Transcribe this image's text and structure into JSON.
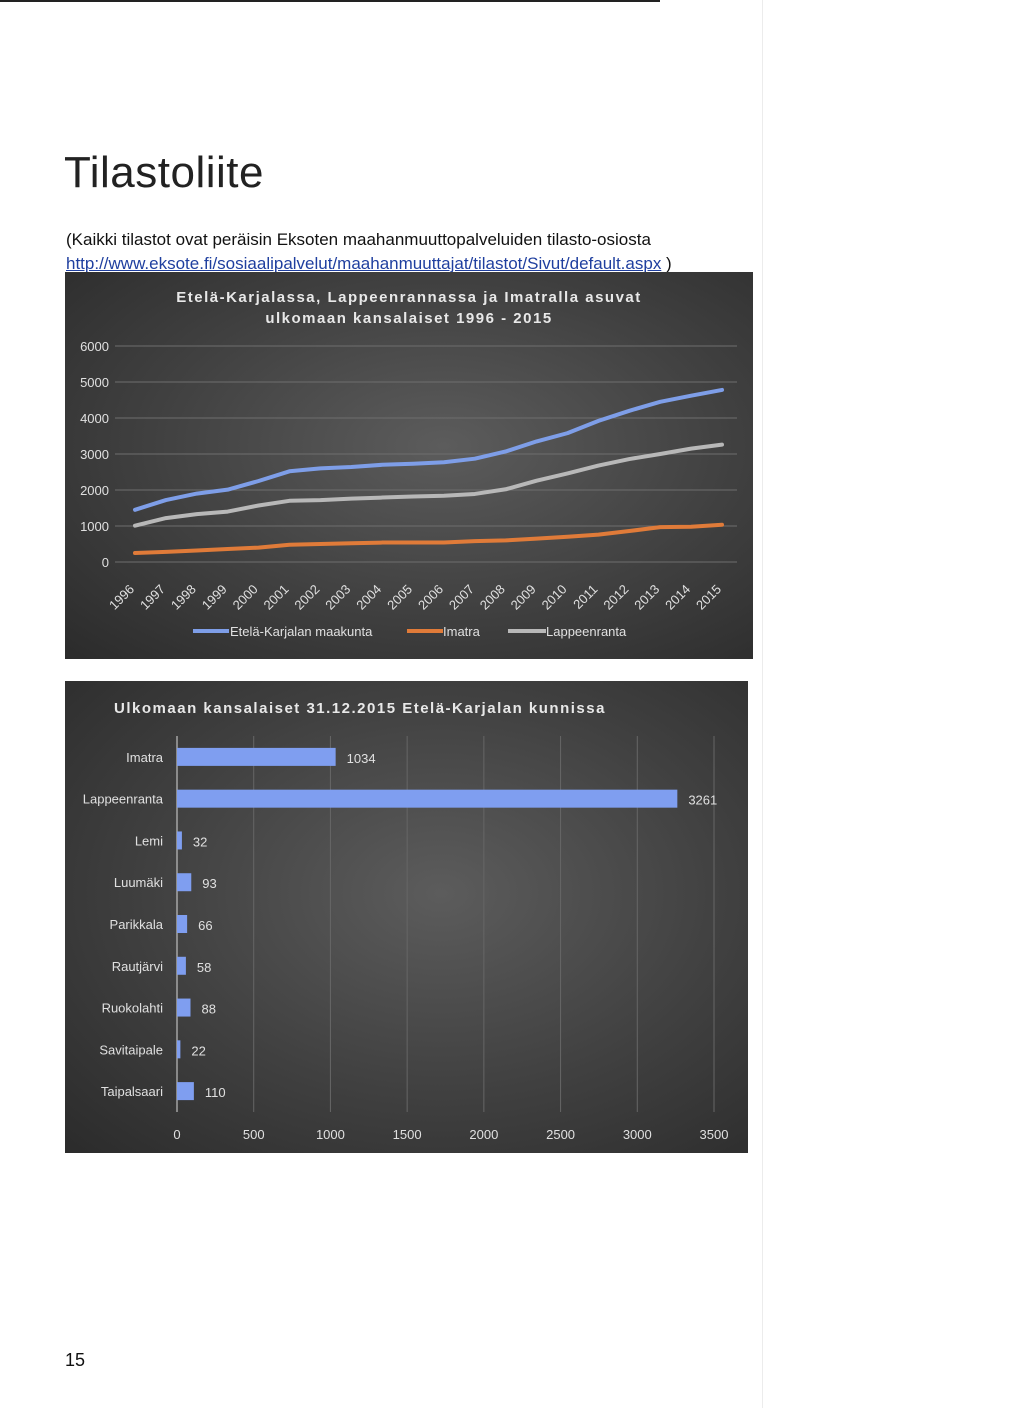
{
  "page": {
    "title": "Tilastoliite",
    "intro_text": "(Kaikki tilastot ovat peräisin Eksoten maahanmuuttopalveluiden tilasto-osiosta",
    "intro_link": "http://www.eksote.fi/sosiaalipalvelut/maahanmuuttajat/tilastot/Sivut/default.aspx",
    "intro_close": " )",
    "page_number": "15"
  },
  "colors": {
    "etela_karjala": "#7e9ee8",
    "imatra": "#e07b39",
    "lappeenranta": "#b8b8b8",
    "bars": "#7f9ef0",
    "panel_bg": "#454545"
  },
  "chart_data": [
    {
      "type": "line",
      "title": "Etelä-Karjalassa, Lappeenrannassa ja Imatralla asuvat ulkomaan kansalaiset 1996 - 2015",
      "x": [
        "1996",
        "1997",
        "1998",
        "1999",
        "2000",
        "2001",
        "2002",
        "2003",
        "2004",
        "2005",
        "2006",
        "2007",
        "2008",
        "2009",
        "2010",
        "2011",
        "2012",
        "2013",
        "2014",
        "2015"
      ],
      "ylim": [
        0,
        6000
      ],
      "yticks": [
        0,
        1000,
        2000,
        3000,
        4000,
        5000,
        6000
      ],
      "grid": true,
      "legend": "bottom",
      "series": [
        {
          "name": "Etelä-Karjalan maakunta",
          "values": [
            1450,
            1720,
            1900,
            2010,
            2250,
            2520,
            2600,
            2640,
            2700,
            2730,
            2770,
            2870,
            3070,
            3350,
            3580,
            3920,
            4200,
            4450,
            4620,
            4780
          ]
        },
        {
          "name": "Imatra",
          "values": [
            250,
            280,
            320,
            360,
            400,
            480,
            500,
            520,
            540,
            540,
            540,
            580,
            600,
            650,
            700,
            760,
            860,
            970,
            980,
            1034
          ]
        },
        {
          "name": "Lappeenranta",
          "values": [
            1010,
            1220,
            1330,
            1400,
            1570,
            1700,
            1720,
            1760,
            1790,
            1820,
            1840,
            1890,
            2020,
            2260,
            2460,
            2680,
            2860,
            3000,
            3150,
            3261
          ]
        }
      ]
    },
    {
      "type": "bar",
      "orientation": "horizontal",
      "title": "Ulkomaan kansalaiset 31.12.2015 Etelä-Karjalan kunnissa",
      "categories": [
        "Imatra",
        "Lappeenranta",
        "Lemi",
        "Luumäki",
        "Parikkala",
        "Rautjärvi",
        "Ruokolahti",
        "Savitaipale",
        "Taipalsaari"
      ],
      "values": [
        1034,
        3261,
        32,
        93,
        66,
        58,
        88,
        22,
        110
      ],
      "xlim": [
        0,
        3500
      ],
      "xticks": [
        0,
        500,
        1000,
        1500,
        2000,
        2500,
        3000,
        3500
      ],
      "grid": true
    }
  ]
}
